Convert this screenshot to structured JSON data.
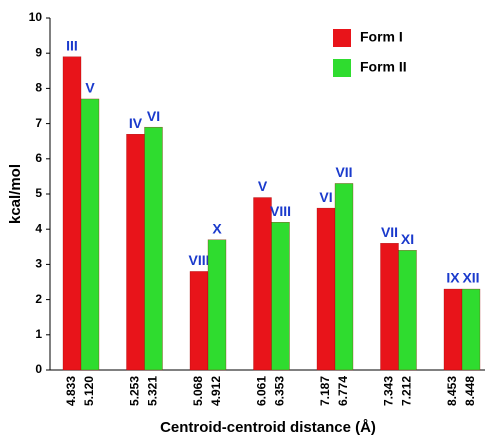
{
  "chart_data": {
    "type": "bar",
    "y_label": "kcal/mol",
    "x_label": "Centroid-centroid distance (Å)",
    "ylim": [
      0,
      10
    ],
    "yticks": [
      0,
      1,
      2,
      3,
      4,
      5,
      6,
      7,
      8,
      9,
      10
    ],
    "legend": "upper right",
    "series": [
      {
        "name": "Form I",
        "color": "#e8141a",
        "values": [
          8.9,
          6.7,
          2.8,
          4.9,
          4.6,
          3.6,
          2.3
        ],
        "bar_labels": [
          "III",
          "IV",
          "VIII",
          "V",
          "VI",
          "VII",
          "IX"
        ],
        "x_labels": [
          "4.833",
          "5.253",
          "5.068",
          "6.061",
          "7.187",
          "7.343",
          "8.453"
        ]
      },
      {
        "name": "Form II",
        "color": "#2fdc2f",
        "values": [
          7.7,
          6.9,
          3.7,
          4.2,
          5.3,
          3.4,
          2.3
        ],
        "bar_labels": [
          "V",
          "VI",
          "X",
          "VIII",
          "VII",
          "XI",
          "XII"
        ],
        "x_labels": [
          "5.120",
          "5.321",
          "4.912",
          "6.353",
          "6.774",
          "7.212",
          "8.448"
        ]
      }
    ]
  }
}
